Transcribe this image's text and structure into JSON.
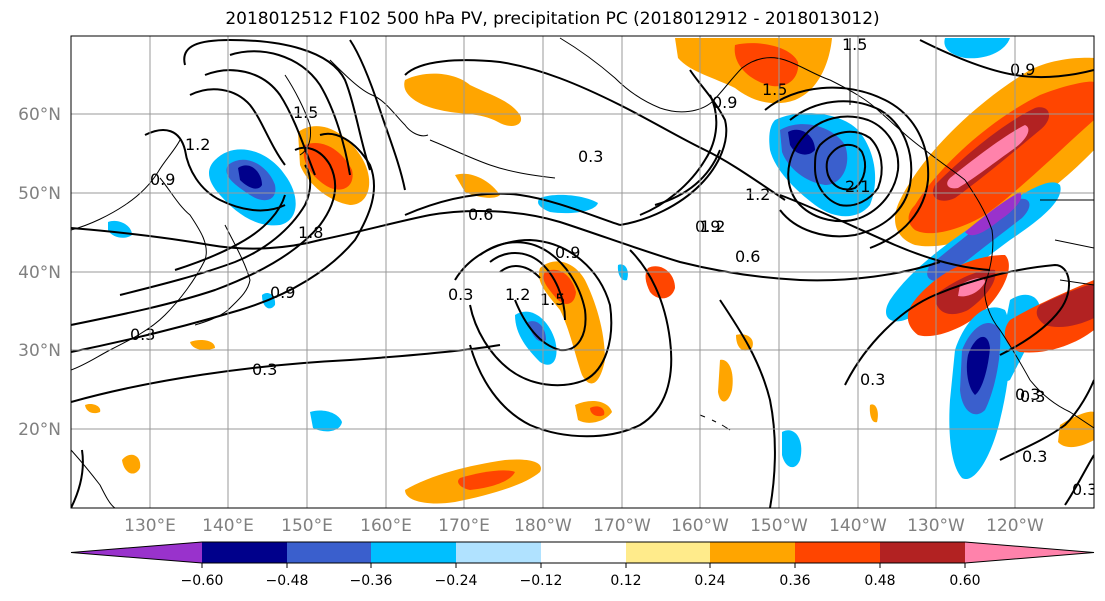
{
  "title": "2018012512 F102 500 hPa PV, precipitation PC (2018012912 - 2018013012)",
  "map": {
    "lat_labels": [
      "60°N",
      "50°N",
      "40°N",
      "30°N",
      "20°N"
    ],
    "lon_labels": [
      "130°E",
      "140°E",
      "150°E",
      "160°E",
      "170°E",
      "180°W",
      "170°W",
      "160°W",
      "150°W",
      "140°W",
      "130°W",
      "120°W"
    ],
    "contour_labels": [
      "0.9",
      "1.2",
      "1.5",
      "1.8",
      "0.9",
      "0.3",
      "0.3",
      "0.6",
      "0.3",
      "0.9",
      "1.2",
      "1.5",
      "0.3",
      "0.9",
      "1.5",
      "1.2",
      "0.9",
      "1.2",
      "0.6",
      "2.1",
      "1.5",
      "0.9",
      "0.3",
      "0.3",
      "0.3",
      "0.3",
      "0.3"
    ]
  },
  "colorbar": {
    "colors": [
      "#9932cc",
      "#00008b",
      "#3a5fcd",
      "#00bfff",
      "#b0e2ff",
      "#ffffff",
      "#ffeb8b",
      "#ffa500",
      "#ff4500",
      "#b22222",
      "#ff82ab"
    ],
    "ticks": [
      "−0.60",
      "−0.48",
      "−0.36",
      "−0.24",
      "−0.12",
      "0.12",
      "0.24",
      "0.36",
      "0.48",
      "0.60"
    ]
  }
}
